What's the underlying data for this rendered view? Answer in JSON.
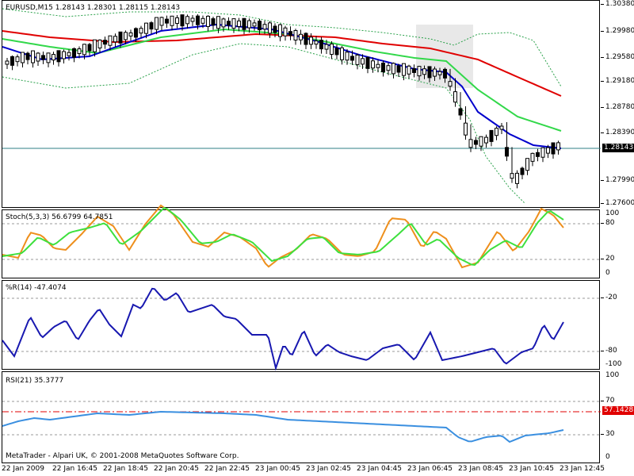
{
  "colors": {
    "ma_red": "#e00000",
    "ma_green": "#32d84a",
    "ma_blue": "#0000cc",
    "bands": "#2aa14a",
    "hline": "#2f7f86",
    "stoch_main": "#ee8f1c",
    "stoch_signal": "#3ee03e",
    "wpr": "#1818b0",
    "rsi": "#3a8fe0",
    "rsi_ref": "#e00000",
    "highlight": "#e8e8e8"
  },
  "price_pane": {
    "title": "EURUSD,M15  1.28143 1.28301 1.28115 1.28143",
    "y_labels": [
      "1.30380",
      "1.29980",
      "1.29580",
      "1.29180",
      "1.28780",
      "1.28390",
      "1.27990",
      "1.27600"
    ],
    "current_price_label": "1.28143"
  },
  "stoch_pane": {
    "title": "Stoch(5,3,3) 56.6799 64.7851",
    "y_labels": [
      "100",
      "80",
      "20",
      "0"
    ]
  },
  "wpr_pane": {
    "title": "%R(14) -47.4074",
    "y_labels": [
      "-20",
      "-80",
      "-100"
    ]
  },
  "rsi_pane": {
    "title": "RSI(21) 35.3777",
    "y_labels": [
      "100",
      "70",
      "30",
      "0"
    ],
    "ref_label": "57.1428",
    "copyright": "MetaTrader - Alpari UK, © 2001-2008 MetaQuotes Software Corp."
  },
  "x_labels": [
    "22 Jan 2009",
    "22 Jan 16:45",
    "22 Jan 18:45",
    "22 Jan 20:45",
    "22 Jan 22:45",
    "23 Jan 00:45",
    "23 Jan 02:45",
    "23 Jan 04:45",
    "23 Jan 06:45",
    "23 Jan 08:45",
    "23 Jan 10:45",
    "23 Jan 12:45"
  ]
}
